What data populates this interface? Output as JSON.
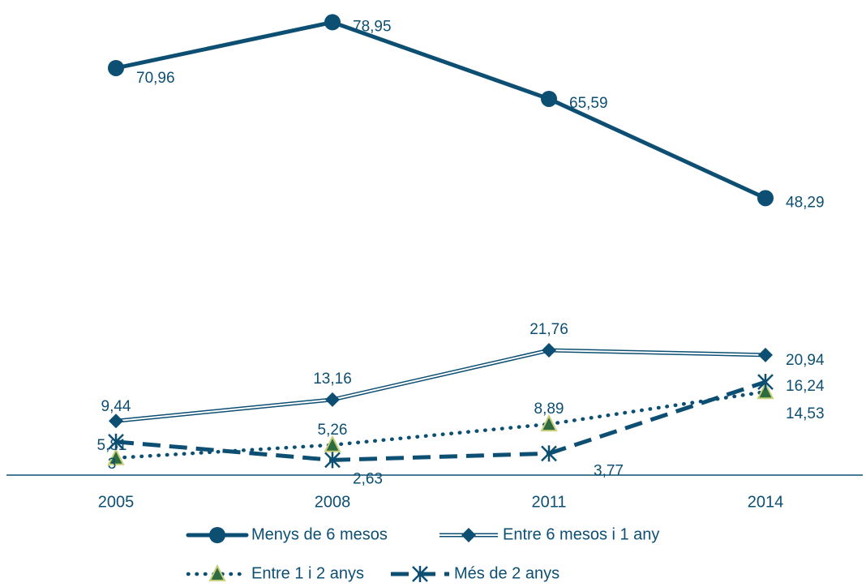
{
  "chart_data": {
    "type": "line",
    "title": "",
    "xlabel": "",
    "ylabel": "",
    "categories": [
      "2005",
      "2008",
      "2011",
      "2014"
    ],
    "ylim": [
      0,
      80
    ],
    "grid": false,
    "legend_position": "bottom",
    "series": [
      {
        "name": "Menys de 6 mesos",
        "values": [
          70.96,
          78.95,
          65.59,
          48.29
        ],
        "labels": [
          "70,96",
          "78,95",
          "65,59",
          "48,29"
        ],
        "style": "solid-thick",
        "marker": "circle",
        "color": "#0d4f73"
      },
      {
        "name": "Entre 6 mesos i 1 any",
        "values": [
          9.44,
          13.16,
          21.76,
          20.94
        ],
        "labels": [
          "9,44",
          "13,16",
          "21,76",
          "20,94"
        ],
        "style": "double",
        "marker": "diamond",
        "color": "#0d4f73"
      },
      {
        "name": "Entre 1 i 2 anys",
        "values": [
          3,
          5.26,
          8.89,
          14.53
        ],
        "labels": [
          "3",
          "5,26",
          "8,89",
          "14,53"
        ],
        "style": "dotted",
        "marker": "triangle",
        "color": "#0d4f73",
        "marker_fill": "#2e6b3e",
        "marker_stroke": "#c8cf7a"
      },
      {
        "name": "Més de 2 anys",
        "values": [
          5.81,
          2.63,
          3.77,
          16.24
        ],
        "labels": [
          "5,81",
          "2,63",
          "3,77",
          "16,24"
        ],
        "style": "dashed",
        "marker": "asterisk",
        "color": "#0d4f73"
      }
    ]
  }
}
